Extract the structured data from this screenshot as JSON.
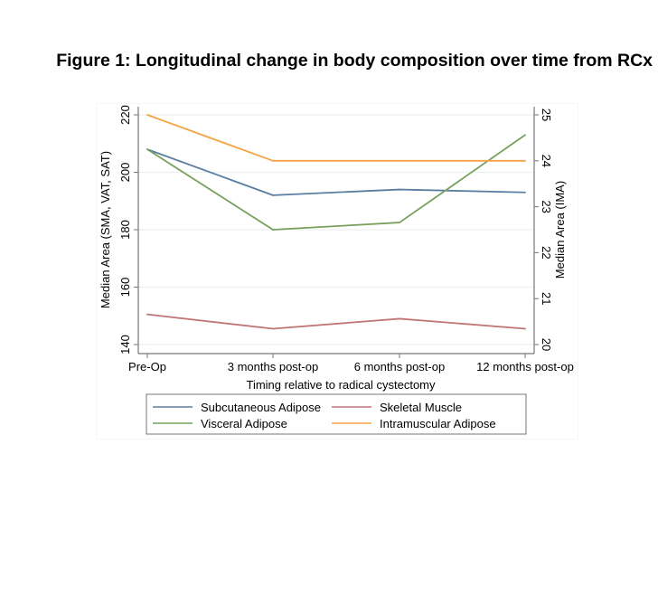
{
  "figure": {
    "title": "Figure 1: Longitudinal change in body composition over time from RCx"
  },
  "chart_data": {
    "type": "line",
    "title": "Figure 1: Longitudinal change in body composition over time from RCx",
    "xlabel": "Timing relative to radical cystectomy",
    "ylabel": "Median Area (SMA, VAT, SAT)",
    "y2label": "Median Area (IMA)",
    "categories": [
      "Pre-Op",
      "3 months post-op",
      "6 months post-op",
      "12 months post-op"
    ],
    "ylim": [
      140,
      220
    ],
    "yticks": [
      140,
      160,
      180,
      200,
      220
    ],
    "y2lim": [
      20,
      25
    ],
    "y2ticks": [
      20,
      21,
      22,
      23,
      24,
      25
    ],
    "grid": true,
    "legend_position": "bottom",
    "series": [
      {
        "name": "Subcutaneous Adipose",
        "axis": "left",
        "color": "#5b7fa3",
        "values": [
          208,
          192,
          194,
          193
        ]
      },
      {
        "name": "Skeletal Muscle",
        "axis": "left",
        "color": "#c07577",
        "values": [
          150.5,
          145.5,
          149,
          145.5
        ]
      },
      {
        "name": "Visceral Adipose",
        "axis": "left",
        "color": "#78a05c",
        "values": [
          208,
          180,
          182.5,
          213
        ]
      },
      {
        "name": "Intramuscular Adipose",
        "axis": "right",
        "color": "#f4a447",
        "values": [
          25,
          24,
          24,
          24
        ]
      }
    ],
    "legend_order": [
      0,
      1,
      2,
      3
    ]
  }
}
